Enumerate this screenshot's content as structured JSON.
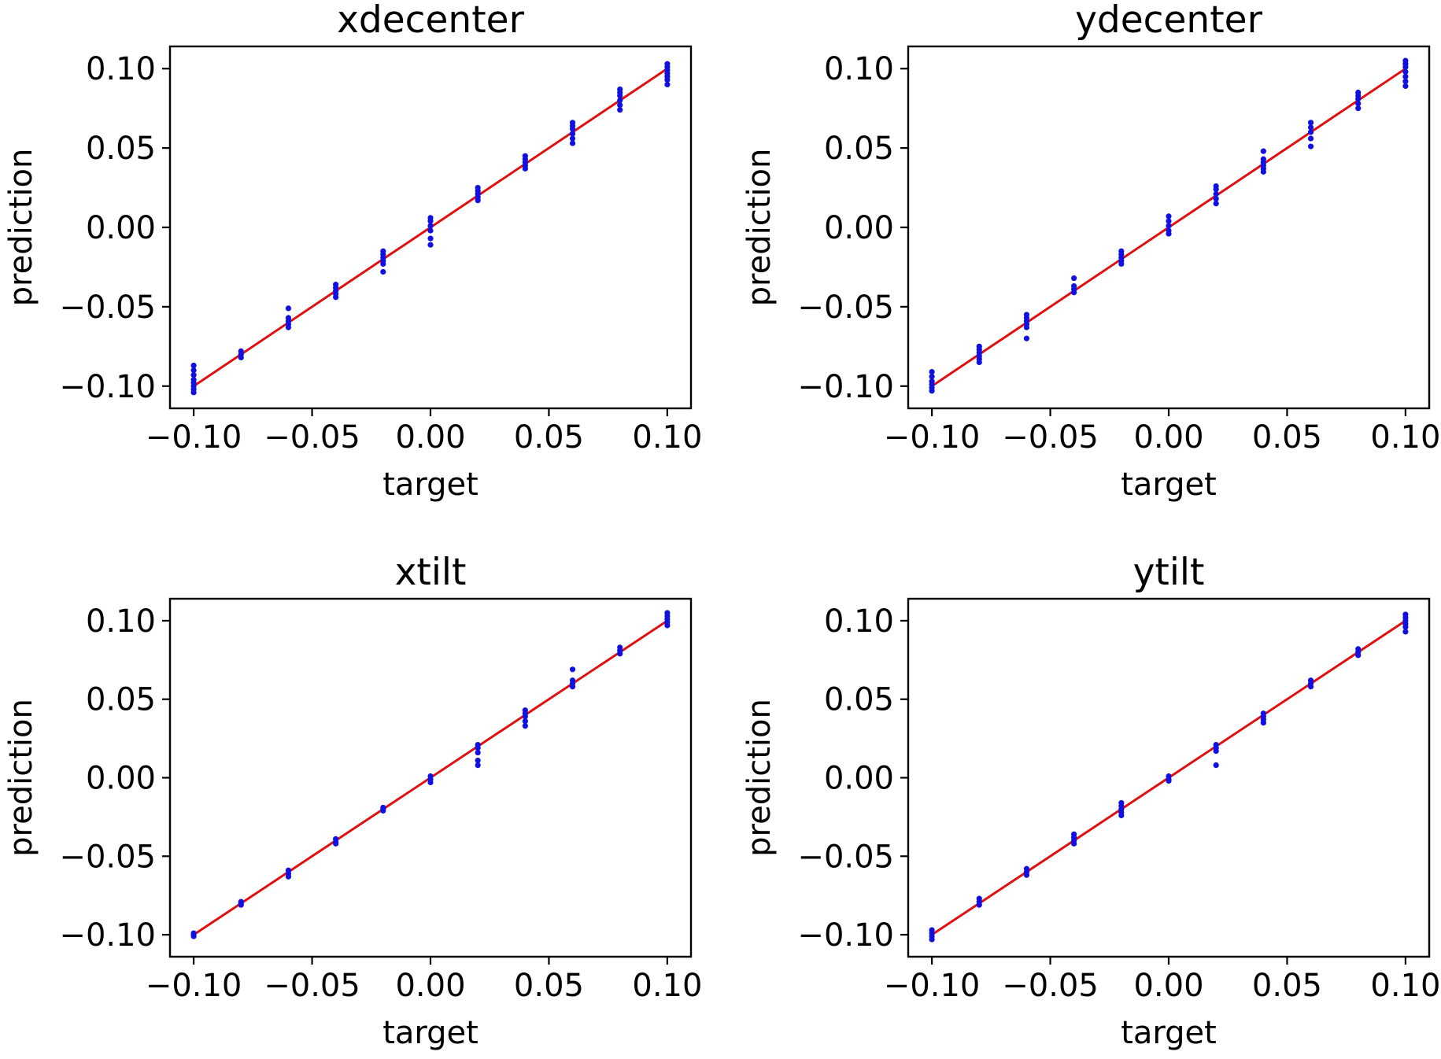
{
  "chart_data": [
    {
      "type": "scatter",
      "title": "xdecenter",
      "xlabel": "target",
      "ylabel": "prediction",
      "xlim": [
        -0.11,
        0.11
      ],
      "ylim": [
        -0.114,
        0.114
      ],
      "xticks": [
        -0.1,
        -0.05,
        0.0,
        0.05,
        0.1
      ],
      "yticks": [
        -0.1,
        -0.05,
        0.0,
        0.05,
        0.1
      ],
      "xtick_labels": [
        "−0.10",
        "−0.05",
        "0.00",
        "0.05",
        "0.10"
      ],
      "ytick_labels": [
        "−0.10",
        "−0.05",
        "0.00",
        "0.05",
        "0.10"
      ],
      "reference_line": {
        "x": [
          -0.1,
          0.1
        ],
        "y": [
          -0.1,
          0.1
        ],
        "color": "#e01010"
      },
      "point_color": "#1010e0",
      "points": [
        [
          -0.1,
          -0.087
        ],
        [
          -0.1,
          -0.09
        ],
        [
          -0.1,
          -0.093
        ],
        [
          -0.1,
          -0.096
        ],
        [
          -0.1,
          -0.098
        ],
        [
          -0.1,
          -0.1
        ],
        [
          -0.1,
          -0.102
        ],
        [
          -0.1,
          -0.104
        ],
        [
          -0.08,
          -0.078
        ],
        [
          -0.08,
          -0.08
        ],
        [
          -0.08,
          -0.082
        ],
        [
          -0.06,
          -0.051
        ],
        [
          -0.06,
          -0.057
        ],
        [
          -0.06,
          -0.059
        ],
        [
          -0.06,
          -0.061
        ],
        [
          -0.06,
          -0.063
        ],
        [
          -0.04,
          -0.036
        ],
        [
          -0.04,
          -0.038
        ],
        [
          -0.04,
          -0.04
        ],
        [
          -0.04,
          -0.042
        ],
        [
          -0.04,
          -0.044
        ],
        [
          -0.02,
          -0.015
        ],
        [
          -0.02,
          -0.017
        ],
        [
          -0.02,
          -0.019
        ],
        [
          -0.02,
          -0.021
        ],
        [
          -0.02,
          -0.023
        ],
        [
          -0.02,
          -0.028
        ],
        [
          0.0,
          0.006
        ],
        [
          0.0,
          0.004
        ],
        [
          0.0,
          0.001
        ],
        [
          0.0,
          -0.002
        ],
        [
          0.0,
          -0.007
        ],
        [
          0.0,
          -0.011
        ],
        [
          0.02,
          0.025
        ],
        [
          0.02,
          0.023
        ],
        [
          0.02,
          0.021
        ],
        [
          0.02,
          0.019
        ],
        [
          0.02,
          0.017
        ],
        [
          0.04,
          0.045
        ],
        [
          0.04,
          0.043
        ],
        [
          0.04,
          0.041
        ],
        [
          0.04,
          0.039
        ],
        [
          0.04,
          0.037
        ],
        [
          0.06,
          0.066
        ],
        [
          0.06,
          0.064
        ],
        [
          0.06,
          0.062
        ],
        [
          0.06,
          0.059
        ],
        [
          0.06,
          0.056
        ],
        [
          0.06,
          0.053
        ],
        [
          0.08,
          0.087
        ],
        [
          0.08,
          0.085
        ],
        [
          0.08,
          0.083
        ],
        [
          0.08,
          0.08
        ],
        [
          0.08,
          0.077
        ],
        [
          0.08,
          0.074
        ],
        [
          0.1,
          0.103
        ],
        [
          0.1,
          0.101
        ],
        [
          0.1,
          0.099
        ],
        [
          0.1,
          0.097
        ],
        [
          0.1,
          0.095
        ],
        [
          0.1,
          0.093
        ],
        [
          0.1,
          0.09
        ]
      ]
    },
    {
      "type": "scatter",
      "title": "ydecenter",
      "xlabel": "target",
      "ylabel": "prediction",
      "xlim": [
        -0.11,
        0.11
      ],
      "ylim": [
        -0.114,
        0.114
      ],
      "xticks": [
        -0.1,
        -0.05,
        0.0,
        0.05,
        0.1
      ],
      "yticks": [
        -0.1,
        -0.05,
        0.0,
        0.05,
        0.1
      ],
      "xtick_labels": [
        "−0.10",
        "−0.05",
        "0.00",
        "0.05",
        "0.10"
      ],
      "ytick_labels": [
        "−0.10",
        "−0.05",
        "0.00",
        "0.05",
        "0.10"
      ],
      "reference_line": {
        "x": [
          -0.1,
          0.1
        ],
        "y": [
          -0.1,
          0.1
        ],
        "color": "#e01010"
      },
      "point_color": "#1010e0",
      "points": [
        [
          -0.1,
          -0.091
        ],
        [
          -0.1,
          -0.094
        ],
        [
          -0.1,
          -0.097
        ],
        [
          -0.1,
          -0.099
        ],
        [
          -0.1,
          -0.101
        ],
        [
          -0.1,
          -0.103
        ],
        [
          -0.08,
          -0.075
        ],
        [
          -0.08,
          -0.077
        ],
        [
          -0.08,
          -0.079
        ],
        [
          -0.08,
          -0.081
        ],
        [
          -0.08,
          -0.083
        ],
        [
          -0.08,
          -0.085
        ],
        [
          -0.06,
          -0.055
        ],
        [
          -0.06,
          -0.057
        ],
        [
          -0.06,
          -0.059
        ],
        [
          -0.06,
          -0.061
        ],
        [
          -0.06,
          -0.063
        ],
        [
          -0.06,
          -0.07
        ],
        [
          -0.04,
          -0.032
        ],
        [
          -0.04,
          -0.037
        ],
        [
          -0.04,
          -0.039
        ],
        [
          -0.04,
          -0.041
        ],
        [
          -0.02,
          -0.015
        ],
        [
          -0.02,
          -0.017
        ],
        [
          -0.02,
          -0.019
        ],
        [
          -0.02,
          -0.021
        ],
        [
          -0.02,
          -0.023
        ],
        [
          0.0,
          0.007
        ],
        [
          0.0,
          0.004
        ],
        [
          0.0,
          0.001
        ],
        [
          0.0,
          -0.002
        ],
        [
          0.0,
          -0.004
        ],
        [
          0.02,
          0.026
        ],
        [
          0.02,
          0.024
        ],
        [
          0.02,
          0.021
        ],
        [
          0.02,
          0.018
        ],
        [
          0.02,
          0.015
        ],
        [
          0.04,
          0.048
        ],
        [
          0.04,
          0.043
        ],
        [
          0.04,
          0.041
        ],
        [
          0.04,
          0.039
        ],
        [
          0.04,
          0.037
        ],
        [
          0.04,
          0.035
        ],
        [
          0.06,
          0.066
        ],
        [
          0.06,
          0.063
        ],
        [
          0.06,
          0.06
        ],
        [
          0.06,
          0.056
        ],
        [
          0.06,
          0.051
        ],
        [
          0.08,
          0.085
        ],
        [
          0.08,
          0.083
        ],
        [
          0.08,
          0.081
        ],
        [
          0.08,
          0.078
        ],
        [
          0.08,
          0.075
        ],
        [
          0.1,
          0.105
        ],
        [
          0.1,
          0.103
        ],
        [
          0.1,
          0.101
        ],
        [
          0.1,
          0.098
        ],
        [
          0.1,
          0.095
        ],
        [
          0.1,
          0.092
        ],
        [
          0.1,
          0.089
        ]
      ]
    },
    {
      "type": "scatter",
      "title": "xtilt",
      "xlabel": "target",
      "ylabel": "prediction",
      "xlim": [
        -0.11,
        0.11
      ],
      "ylim": [
        -0.114,
        0.114
      ],
      "xticks": [
        -0.1,
        -0.05,
        0.0,
        0.05,
        0.1
      ],
      "yticks": [
        -0.1,
        -0.05,
        0.0,
        0.05,
        0.1
      ],
      "xtick_labels": [
        "−0.10",
        "−0.05",
        "0.00",
        "0.05",
        "0.10"
      ],
      "ytick_labels": [
        "−0.10",
        "−0.05",
        "0.00",
        "0.05",
        "0.10"
      ],
      "reference_line": {
        "x": [
          -0.1,
          0.1
        ],
        "y": [
          -0.1,
          0.1
        ],
        "color": "#e01010"
      },
      "point_color": "#1010e0",
      "points": [
        [
          -0.1,
          -0.099
        ],
        [
          -0.1,
          -0.1
        ],
        [
          -0.1,
          -0.101
        ],
        [
          -0.08,
          -0.079
        ],
        [
          -0.08,
          -0.08
        ],
        [
          -0.08,
          -0.081
        ],
        [
          -0.06,
          -0.059
        ],
        [
          -0.06,
          -0.061
        ],
        [
          -0.06,
          -0.063
        ],
        [
          -0.04,
          -0.039
        ],
        [
          -0.04,
          -0.041
        ],
        [
          -0.04,
          -0.042
        ],
        [
          -0.02,
          -0.019
        ],
        [
          -0.02,
          -0.02
        ],
        [
          -0.02,
          -0.021
        ],
        [
          0.0,
          0.001
        ],
        [
          0.0,
          -0.001
        ],
        [
          0.0,
          -0.003
        ],
        [
          0.02,
          0.021
        ],
        [
          0.02,
          0.019
        ],
        [
          0.02,
          0.016
        ],
        [
          0.02,
          0.011
        ],
        [
          0.02,
          0.008
        ],
        [
          0.04,
          0.043
        ],
        [
          0.04,
          0.041
        ],
        [
          0.04,
          0.039
        ],
        [
          0.04,
          0.036
        ],
        [
          0.04,
          0.033
        ],
        [
          0.06,
          0.069
        ],
        [
          0.06,
          0.062
        ],
        [
          0.06,
          0.06
        ],
        [
          0.06,
          0.058
        ],
        [
          0.08,
          0.083
        ],
        [
          0.08,
          0.081
        ],
        [
          0.08,
          0.079
        ],
        [
          0.1,
          0.105
        ],
        [
          0.1,
          0.103
        ],
        [
          0.1,
          0.101
        ],
        [
          0.1,
          0.099
        ],
        [
          0.1,
          0.097
        ]
      ]
    },
    {
      "type": "scatter",
      "title": "ytilt",
      "xlabel": "target",
      "ylabel": "prediction",
      "xlim": [
        -0.11,
        0.11
      ],
      "ylim": [
        -0.114,
        0.114
      ],
      "xticks": [
        -0.1,
        -0.05,
        0.0,
        0.05,
        0.1
      ],
      "yticks": [
        -0.1,
        -0.05,
        0.0,
        0.05,
        0.1
      ],
      "xtick_labels": [
        "−0.10",
        "−0.05",
        "0.00",
        "0.05",
        "0.10"
      ],
      "ytick_labels": [
        "−0.10",
        "−0.05",
        "0.00",
        "0.05",
        "0.10"
      ],
      "reference_line": {
        "x": [
          -0.1,
          0.1
        ],
        "y": [
          -0.1,
          0.1
        ],
        "color": "#e01010"
      },
      "point_color": "#1010e0",
      "points": [
        [
          -0.1,
          -0.097
        ],
        [
          -0.1,
          -0.099
        ],
        [
          -0.1,
          -0.101
        ],
        [
          -0.1,
          -0.103
        ],
        [
          -0.08,
          -0.077
        ],
        [
          -0.08,
          -0.079
        ],
        [
          -0.08,
          -0.081
        ],
        [
          -0.06,
          -0.058
        ],
        [
          -0.06,
          -0.06
        ],
        [
          -0.06,
          -0.062
        ],
        [
          -0.04,
          -0.036
        ],
        [
          -0.04,
          -0.038
        ],
        [
          -0.04,
          -0.04
        ],
        [
          -0.04,
          -0.042
        ],
        [
          -0.02,
          -0.016
        ],
        [
          -0.02,
          -0.018
        ],
        [
          -0.02,
          -0.02
        ],
        [
          -0.02,
          -0.022
        ],
        [
          -0.02,
          -0.024
        ],
        [
          0.0,
          0.001
        ],
        [
          0.0,
          -0.001
        ],
        [
          0.0,
          -0.002
        ],
        [
          0.02,
          0.021
        ],
        [
          0.02,
          0.019
        ],
        [
          0.02,
          0.017
        ],
        [
          0.02,
          0.008
        ],
        [
          0.04,
          0.041
        ],
        [
          0.04,
          0.039
        ],
        [
          0.04,
          0.037
        ],
        [
          0.04,
          0.035
        ],
        [
          0.06,
          0.062
        ],
        [
          0.06,
          0.06
        ],
        [
          0.06,
          0.058
        ],
        [
          0.08,
          0.082
        ],
        [
          0.08,
          0.08
        ],
        [
          0.08,
          0.078
        ],
        [
          0.1,
          0.104
        ],
        [
          0.1,
          0.102
        ],
        [
          0.1,
          0.1
        ],
        [
          0.1,
          0.098
        ],
        [
          0.1,
          0.096
        ],
        [
          0.1,
          0.093
        ]
      ]
    }
  ]
}
